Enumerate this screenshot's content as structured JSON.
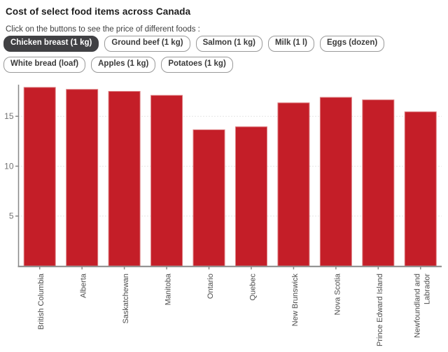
{
  "header": {
    "title": "Cost of select food items across Canada",
    "subtitle": "Click on the buttons to see the price of different foods :"
  },
  "buttons": [
    {
      "label": "Chicken breast (1 kg)",
      "selected": true
    },
    {
      "label": "Ground beef (1 kg)",
      "selected": false
    },
    {
      "label": "Salmon (1 kg)",
      "selected": false
    },
    {
      "label": "Milk (1 l)",
      "selected": false
    },
    {
      "label": "Eggs (dozen)",
      "selected": false
    },
    {
      "label": "White bread (loaf)",
      "selected": false
    },
    {
      "label": "Apples (1 kg)",
      "selected": false
    },
    {
      "label": "Potatoes (1 kg)",
      "selected": false
    }
  ],
  "colors": {
    "bar": "#c41e28",
    "bar_stroke": "#de8184",
    "selected_button_bg": "#414144",
    "axis": "#888888",
    "grid": "#cccccc",
    "y_tick_label": "#737373",
    "x_label": "#4d4d4d"
  },
  "chart_data": {
    "type": "bar",
    "title": "Cost of select food items across Canada",
    "series_name": "Chicken breast (1 kg)",
    "categories": [
      "British Columbia",
      "Alberta",
      "Saskatchewan",
      "Manitoba",
      "Ontario",
      "Quebec",
      "New Brunswick",
      "Nova Scotia",
      "Prince Edward Island",
      "Newfoundland and\nLabrador"
    ],
    "values": [
      17.9,
      17.7,
      17.5,
      17.1,
      13.65,
      13.95,
      16.35,
      16.9,
      16.65,
      15.45
    ],
    "xlabel": "",
    "ylabel": "",
    "yticks": [
      5,
      10,
      15
    ],
    "ylim": [
      0,
      18.1
    ],
    "grid": "horizontal-dotted",
    "legend": "none"
  }
}
